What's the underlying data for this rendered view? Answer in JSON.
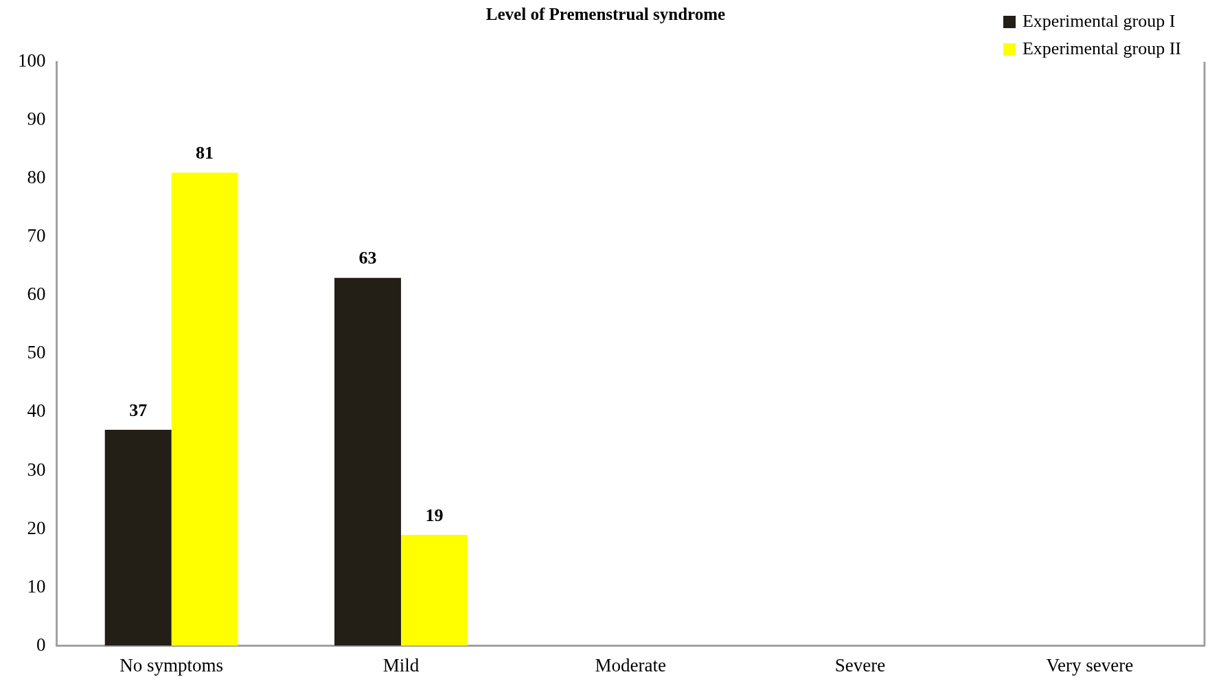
{
  "chart_data": {
    "type": "bar",
    "title": "Level of Premenstrual syndrome",
    "categories": [
      "No symptoms",
      "Mild",
      "Moderate",
      "Severe",
      "Very severe"
    ],
    "series": [
      {
        "name": "Experimental group I",
        "color": "#231f16",
        "values": [
          37,
          63,
          0,
          0,
          0
        ],
        "value_labels": [
          "37",
          "63",
          null,
          null,
          null
        ]
      },
      {
        "name": "Experimental group II",
        "color": "#ffff00",
        "values": [
          81,
          19,
          0,
          0,
          0
        ],
        "value_labels": [
          "81",
          "19",
          null,
          null,
          null
        ]
      }
    ],
    "ylim": [
      0,
      100
    ],
    "yticks": [
      0,
      10,
      20,
      30,
      40,
      50,
      60,
      70,
      80,
      90,
      100
    ],
    "grid": false,
    "legend": "top right"
  }
}
